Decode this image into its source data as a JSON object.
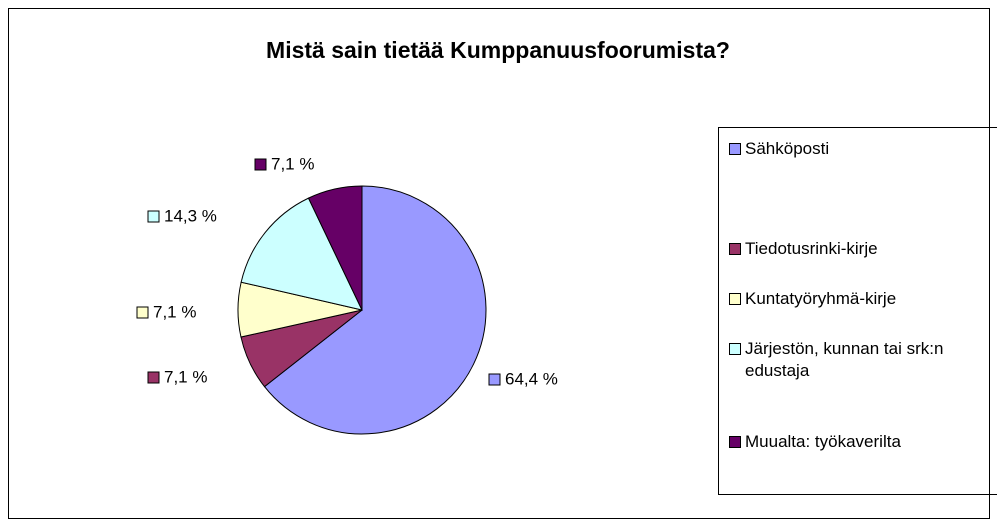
{
  "chart_data": {
    "type": "pie",
    "title": "Mistä sain tietää Kumppanuusfoorumista?",
    "categories": [
      "Sähköposti",
      "Tiedotusrinki-kirje",
      "Kuntatyöryhmä-kirje",
      "Järjestön, kunnan tai srk:n  edustaja",
      "Muualta: työkaverilta"
    ],
    "values": [
      64.4,
      7.1,
      7.1,
      14.3,
      7.1
    ],
    "value_labels": [
      "64,4 %",
      "7,1 %",
      "7,1 %",
      "14,3 %",
      "7,1 %"
    ],
    "colors": [
      "#9999ff",
      "#993366",
      "#ffffcc",
      "#ccffff",
      "#660066"
    ]
  }
}
